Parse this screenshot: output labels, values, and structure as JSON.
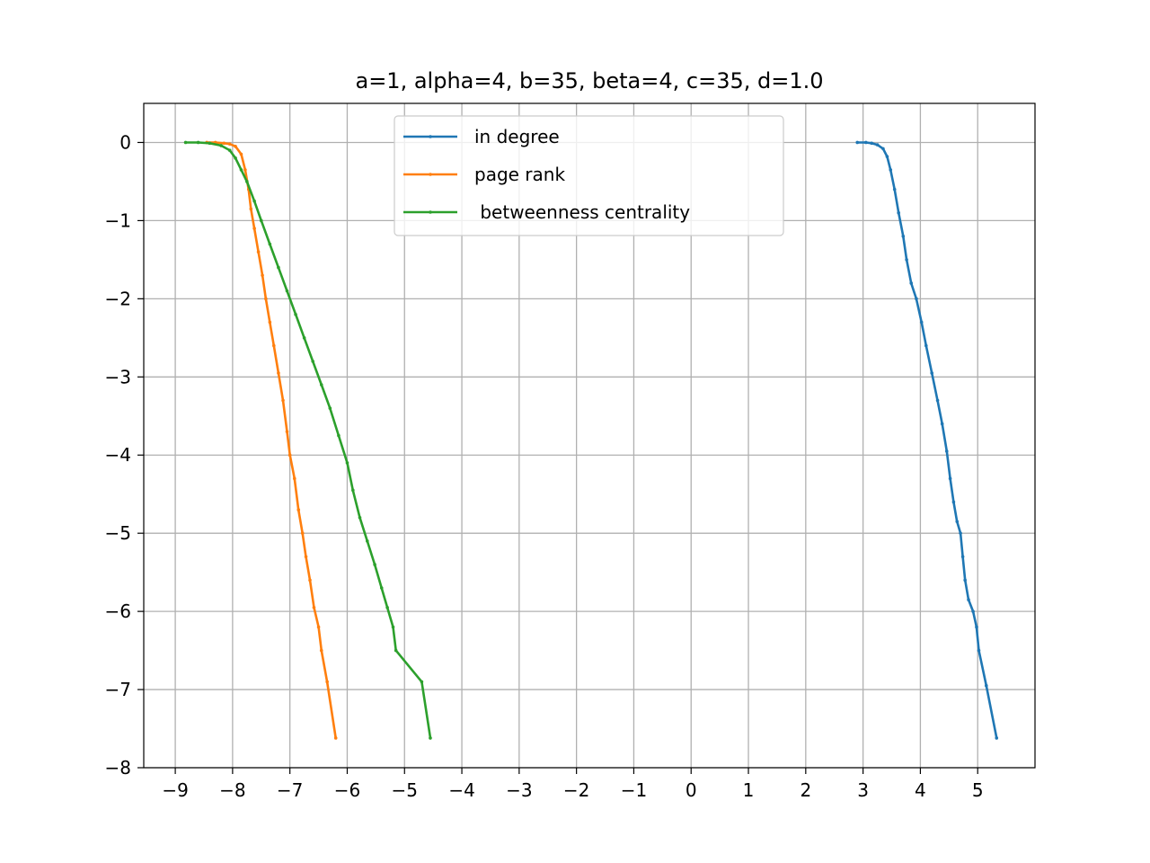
{
  "chart_data": {
    "type": "line",
    "title": "a=1, alpha=4, b=35, beta=4, c=35, d=1.0",
    "xlabel": "",
    "ylabel": "",
    "xlim": [
      -9.55,
      6.0
    ],
    "ylim": [
      -8.0,
      0.5
    ],
    "grid": true,
    "legend_position": "top-center",
    "x_ticks": [
      {
        "value": -9,
        "label": "−9"
      },
      {
        "value": -8,
        "label": "−8"
      },
      {
        "value": -7,
        "label": "−7"
      },
      {
        "value": -6,
        "label": "−6"
      },
      {
        "value": -5,
        "label": "−5"
      },
      {
        "value": -4,
        "label": "−4"
      },
      {
        "value": -3,
        "label": "−3"
      },
      {
        "value": -2,
        "label": "−2"
      },
      {
        "value": -1,
        "label": "−1"
      },
      {
        "value": 0,
        "label": "0"
      },
      {
        "value": 1,
        "label": "1"
      },
      {
        "value": 2,
        "label": "2"
      },
      {
        "value": 3,
        "label": "3"
      },
      {
        "value": 4,
        "label": "4"
      },
      {
        "value": 5,
        "label": "5"
      }
    ],
    "y_ticks": [
      {
        "value": 0,
        "label": "0"
      },
      {
        "value": -1,
        "label": "−1"
      },
      {
        "value": -2,
        "label": "−2"
      },
      {
        "value": -3,
        "label": "−3"
      },
      {
        "value": -4,
        "label": "−4"
      },
      {
        "value": -5,
        "label": "−5"
      },
      {
        "value": -6,
        "label": "−6"
      },
      {
        "value": -7,
        "label": "−7"
      },
      {
        "value": -8,
        "label": "−8"
      }
    ],
    "series": [
      {
        "name": "in degree",
        "color": "#1f77b4",
        "points": [
          [
            2.9,
            0.0
          ],
          [
            3.05,
            0.0
          ],
          [
            3.15,
            -0.01
          ],
          [
            3.25,
            -0.03
          ],
          [
            3.35,
            -0.08
          ],
          [
            3.42,
            -0.18
          ],
          [
            3.48,
            -0.35
          ],
          [
            3.55,
            -0.6
          ],
          [
            3.62,
            -0.9
          ],
          [
            3.7,
            -1.2
          ],
          [
            3.76,
            -1.5
          ],
          [
            3.84,
            -1.8
          ],
          [
            3.93,
            -2.0
          ],
          [
            4.02,
            -2.3
          ],
          [
            4.1,
            -2.6
          ],
          [
            4.2,
            -2.95
          ],
          [
            4.3,
            -3.3
          ],
          [
            4.38,
            -3.6
          ],
          [
            4.46,
            -3.95
          ],
          [
            4.52,
            -4.3
          ],
          [
            4.58,
            -4.6
          ],
          [
            4.64,
            -4.85
          ],
          [
            4.7,
            -5.0
          ],
          [
            4.74,
            -5.3
          ],
          [
            4.78,
            -5.6
          ],
          [
            4.84,
            -5.85
          ],
          [
            4.92,
            -6.0
          ],
          [
            4.98,
            -6.2
          ],
          [
            5.02,
            -6.5
          ],
          [
            5.15,
            -6.95
          ],
          [
            5.33,
            -7.62
          ]
        ]
      },
      {
        "name": "page rank",
        "color": "#ff7f0e",
        "points": [
          [
            -8.45,
            0.0
          ],
          [
            -8.3,
            0.0
          ],
          [
            -8.15,
            -0.01
          ],
          [
            -8.05,
            -0.02
          ],
          [
            -7.95,
            -0.05
          ],
          [
            -7.85,
            -0.15
          ],
          [
            -7.78,
            -0.35
          ],
          [
            -7.72,
            -0.6
          ],
          [
            -7.68,
            -0.85
          ],
          [
            -7.62,
            -1.1
          ],
          [
            -7.55,
            -1.4
          ],
          [
            -7.48,
            -1.7
          ],
          [
            -7.42,
            -2.0
          ],
          [
            -7.35,
            -2.3
          ],
          [
            -7.28,
            -2.6
          ],
          [
            -7.2,
            -2.95
          ],
          [
            -7.12,
            -3.3
          ],
          [
            -7.05,
            -3.7
          ],
          [
            -7.0,
            -4.0
          ],
          [
            -6.92,
            -4.3
          ],
          [
            -6.85,
            -4.7
          ],
          [
            -6.78,
            -5.0
          ],
          [
            -6.72,
            -5.3
          ],
          [
            -6.65,
            -5.6
          ],
          [
            -6.58,
            -5.95
          ],
          [
            -6.5,
            -6.2
          ],
          [
            -6.45,
            -6.5
          ],
          [
            -6.35,
            -6.9
          ],
          [
            -6.2,
            -7.62
          ]
        ]
      },
      {
        "name": " betweenness centrality",
        "color": "#2ca02c",
        "points": [
          [
            -8.82,
            0.0
          ],
          [
            -8.6,
            0.0
          ],
          [
            -8.4,
            -0.01
          ],
          [
            -8.2,
            -0.04
          ],
          [
            -8.05,
            -0.1
          ],
          [
            -7.95,
            -0.2
          ],
          [
            -7.85,
            -0.35
          ],
          [
            -7.75,
            -0.5
          ],
          [
            -7.62,
            -0.75
          ],
          [
            -7.5,
            -1.0
          ],
          [
            -7.35,
            -1.3
          ],
          [
            -7.2,
            -1.6
          ],
          [
            -7.05,
            -1.9
          ],
          [
            -6.9,
            -2.2
          ],
          [
            -6.75,
            -2.5
          ],
          [
            -6.6,
            -2.8
          ],
          [
            -6.45,
            -3.1
          ],
          [
            -6.3,
            -3.4
          ],
          [
            -6.15,
            -3.75
          ],
          [
            -6.0,
            -4.1
          ],
          [
            -5.9,
            -4.45
          ],
          [
            -5.78,
            -4.8
          ],
          [
            -5.65,
            -5.1
          ],
          [
            -5.52,
            -5.4
          ],
          [
            -5.4,
            -5.7
          ],
          [
            -5.3,
            -5.95
          ],
          [
            -5.2,
            -6.2
          ],
          [
            -5.15,
            -6.5
          ],
          [
            -4.7,
            -6.9
          ],
          [
            -4.55,
            -7.62
          ]
        ]
      }
    ]
  }
}
